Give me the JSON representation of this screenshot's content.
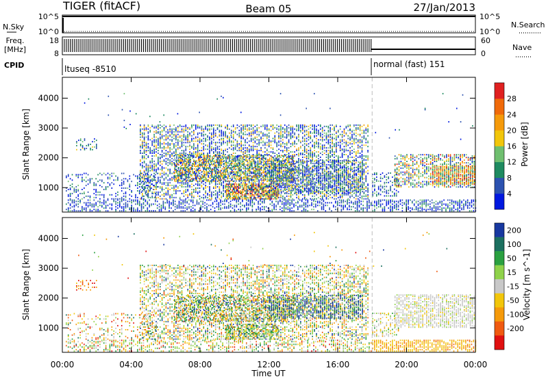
{
  "chart_data": {
    "type": "heatmap",
    "header": {
      "radar": "TIGER (fitACF)",
      "beam": "Beam 05",
      "date": "27/Jan/2013"
    },
    "status_panels": {
      "nsky_label": "N.Sky",
      "nsearch_label": "N.Search",
      "nsky_ticks": [
        "10^5",
        "10^0"
      ],
      "nsearch_ticks": [
        "10^5",
        "10^0"
      ],
      "freq_label_line1": "Freq.",
      "freq_label_line2": "[MHz]",
      "freq_ticks": [
        18,
        8
      ],
      "nave_label": "Nave",
      "nave_ticks": [
        60,
        0
      ],
      "cpid_label": "CPID",
      "cpid_segments": [
        {
          "label": "ltuseq -8510",
          "start_hour": 0,
          "end_hour": 18
        },
        {
          "label": "normal (fast) 151",
          "start_hour": 18,
          "end_hour": 24
        }
      ]
    },
    "x_axis": {
      "label": "Time UT",
      "ticks": [
        "00:00",
        "04:00",
        "08:00",
        "12:00",
        "16:00",
        "20:00",
        "00:00"
      ],
      "range_hours": [
        0,
        24
      ],
      "mode_change_hour": 18
    },
    "y_axis": {
      "label": "Slant Range [km]",
      "ticks": [
        1000,
        2000,
        3000,
        4000
      ],
      "range": [
        180,
        4700
      ]
    },
    "panels": [
      {
        "name": "power",
        "colorbar_label": "Power [dB]",
        "colorbar_ticks": [
          "4",
          "8",
          "12",
          "16",
          "20",
          "24",
          "28"
        ],
        "colors": [
          "#0018e0",
          "#2c52b0",
          "#1e8a60",
          "#6fbf6f",
          "#f2c60a",
          "#f59a0a",
          "#f06a0a",
          "#e02020"
        ],
        "regions": [
          {
            "t0": 0.2,
            "t1": 18.0,
            "r0": 200,
            "r1": 600,
            "density": 0.5,
            "weights": [
              5,
              4,
              2,
              1,
              0,
              0,
              0,
              0
            ]
          },
          {
            "t0": 0.2,
            "t1": 5.5,
            "r0": 600,
            "r1": 1500,
            "density": 0.28,
            "weights": [
              5,
              4,
              2,
              1,
              0,
              0,
              0,
              0
            ]
          },
          {
            "t0": 0.8,
            "t1": 2.0,
            "r0": 2250,
            "r1": 2650,
            "density": 0.3,
            "weights": [
              2,
              3,
              4,
              2,
              1,
              0,
              0,
              0
            ]
          },
          {
            "t0": 4.5,
            "t1": 17.8,
            "r0": 600,
            "r1": 3100,
            "density": 0.55,
            "weights": [
              4,
              3,
              3,
              2,
              2,
              1,
              0,
              0
            ]
          },
          {
            "t0": 6.5,
            "t1": 13.5,
            "r0": 1200,
            "r1": 2100,
            "density": 0.7,
            "weights": [
              1,
              2,
              3,
              4,
              4,
              3,
              1,
              0
            ]
          },
          {
            "t0": 9.5,
            "t1": 12.5,
            "r0": 600,
            "r1": 1100,
            "density": 0.85,
            "weights": [
              0,
              1,
              1,
              2,
              3,
              3,
              2,
              2
            ]
          },
          {
            "t0": 12.0,
            "t1": 17.5,
            "r0": 800,
            "r1": 1900,
            "density": 0.6,
            "weights": [
              3,
              3,
              2,
              2,
              1,
              0,
              0,
              0
            ]
          },
          {
            "t0": 18.0,
            "t1": 24.0,
            "r0": 200,
            "r1": 600,
            "density": 0.6,
            "weights": [
              4,
              3,
              2,
              1,
              0,
              0,
              0,
              0
            ]
          },
          {
            "t0": 18.0,
            "t1": 19.5,
            "r0": 700,
            "r1": 1500,
            "density": 0.4,
            "weights": [
              3,
              3,
              3,
              2,
              0,
              0,
              0,
              0
            ]
          },
          {
            "t0": 19.3,
            "t1": 24.0,
            "r0": 1000,
            "r1": 2100,
            "density": 0.6,
            "weights": [
              2,
              2,
              3,
              4,
              3,
              2,
              1,
              1
            ]
          },
          {
            "t0": 21.5,
            "t1": 24.0,
            "r0": 1100,
            "r1": 1700,
            "density": 0.85,
            "weights": [
              0,
              1,
              2,
              3,
              3,
              3,
              3,
              2
            ]
          },
          {
            "t0": 0.0,
            "t1": 24.0,
            "r0": 2600,
            "r1": 4200,
            "density": 0.008,
            "weights": [
              4,
              3,
              2,
              1,
              0,
              0,
              0,
              0
            ]
          }
        ]
      },
      {
        "name": "velocity",
        "colorbar_label": "Velocity [m s^-1]",
        "colorbar_ticks": [
          "200",
          "100",
          "50",
          "15",
          "-15",
          "-50",
          "-100",
          "-200"
        ],
        "colors": [
          "#1838a0",
          "#1c7060",
          "#2aa040",
          "#8fd24a",
          "#c8c8c8",
          "#f2c60a",
          "#f59a0a",
          "#f05a10",
          "#e01010"
        ],
        "regions": [
          {
            "t0": 0.2,
            "t1": 18.0,
            "r0": 200,
            "r1": 600,
            "density": 0.45,
            "weights": [
              0,
              1,
              2,
              3,
              3,
              2,
              2,
              1,
              1
            ]
          },
          {
            "t0": 0.2,
            "t1": 5.5,
            "r0": 600,
            "r1": 1500,
            "density": 0.22,
            "weights": [
              0,
              1,
              1,
              2,
              2,
              2,
              2,
              2,
              1
            ]
          },
          {
            "t0": 0.8,
            "t1": 2.0,
            "r0": 2250,
            "r1": 2650,
            "density": 0.3,
            "weights": [
              0,
              0,
              0,
              0,
              0,
              1,
              2,
              3,
              4
            ]
          },
          {
            "t0": 4.5,
            "t1": 17.8,
            "r0": 600,
            "r1": 3100,
            "density": 0.5,
            "weights": [
              1,
              1,
              2,
              2,
              3,
              3,
              2,
              1,
              0
            ]
          },
          {
            "t0": 6.5,
            "t1": 13.5,
            "r0": 1200,
            "r1": 2100,
            "density": 0.65,
            "weights": [
              2,
              2,
              3,
              3,
              3,
              2,
              2,
              1,
              0
            ]
          },
          {
            "t0": 12.0,
            "t1": 17.5,
            "r0": 1300,
            "r1": 2100,
            "density": 0.7,
            "weights": [
              5,
              2,
              2,
              1,
              1,
              1,
              0,
              0,
              0
            ]
          },
          {
            "t0": 9.5,
            "t1": 12.5,
            "r0": 600,
            "r1": 1100,
            "density": 0.75,
            "weights": [
              1,
              1,
              2,
              3,
              3,
              2,
              1,
              0,
              0
            ]
          },
          {
            "t0": 18.0,
            "t1": 24.0,
            "r0": 200,
            "r1": 600,
            "density": 0.7,
            "weights": [
              0,
              0,
              0,
              0,
              0,
              5,
              4,
              1,
              0
            ]
          },
          {
            "t0": 18.0,
            "t1": 19.5,
            "r0": 700,
            "r1": 1500,
            "density": 0.35,
            "weights": [
              0,
              0,
              1,
              1,
              3,
              2,
              1,
              0,
              0
            ]
          },
          {
            "t0": 19.3,
            "t1": 24.0,
            "r0": 1000,
            "r1": 2100,
            "density": 0.65,
            "weights": [
              0,
              0,
              0,
              1,
              6,
              1,
              0,
              0,
              0
            ]
          },
          {
            "t0": 0.0,
            "t1": 24.0,
            "r0": 2600,
            "r1": 4200,
            "density": 0.008,
            "weights": [
              1,
              1,
              1,
              1,
              1,
              1,
              1,
              1,
              1
            ]
          }
        ]
      }
    ]
  }
}
